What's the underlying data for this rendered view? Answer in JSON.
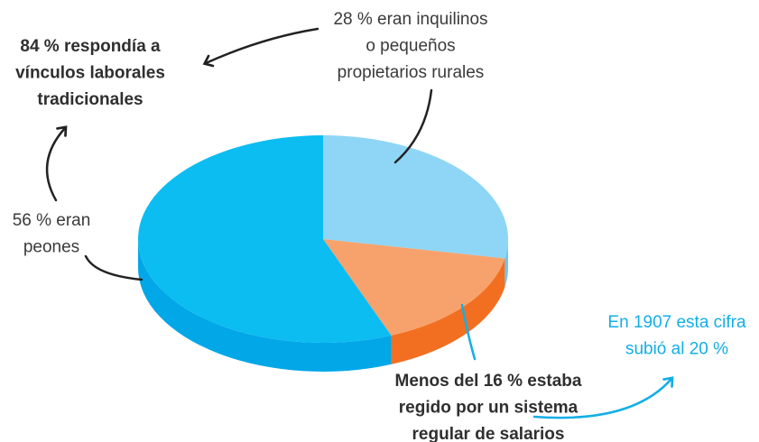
{
  "chart_data": {
    "type": "pie3d",
    "values": [
      28,
      16,
      56
    ],
    "colors": [
      "#8fd6f6",
      "#f7a26c",
      "#0bbdf1"
    ],
    "side_colors": [
      "#6fc6ee",
      "#f26f21",
      "#02a7e8"
    ],
    "annotations": [
      {
        "lines": [
          "28 % eran inquilinos",
          "o pequeños",
          "propietarios rurales"
        ]
      },
      {
        "lines": [
          "84 % respondía a",
          "vínculos laborales",
          "tradicionales"
        ]
      },
      {
        "lines": [
          "56 % eran",
          "peones"
        ]
      },
      {
        "lines": [
          "Menos del 16 % estaba",
          "regido por un sistema",
          "regular de salarios"
        ]
      },
      {
        "lines": [
          "En 1907 esta cifra",
          "subió al 20 %"
        ]
      }
    ]
  }
}
